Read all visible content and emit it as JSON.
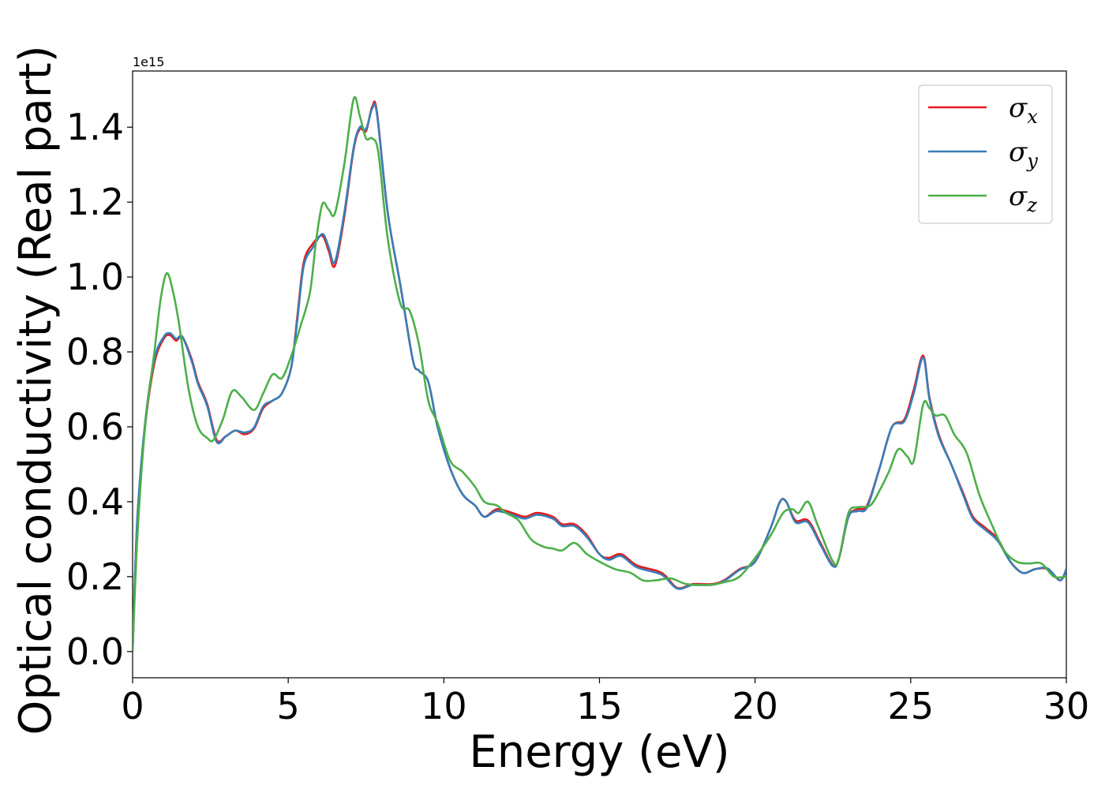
{
  "chart_data": {
    "type": "line",
    "title": "",
    "xlabel": "Energy (eV)",
    "ylabel": "Optical conductivity (Real part)",
    "y_offset_label": "1e15",
    "xlim": [
      0,
      30
    ],
    "ylim": [
      -0.07,
      1.55
    ],
    "x_ticks": [
      0,
      5,
      10,
      15,
      20,
      25,
      30
    ],
    "x_tick_labels": [
      "0",
      "5",
      "10",
      "15",
      "20",
      "25",
      "30"
    ],
    "y_ticks": [
      0.0,
      0.2,
      0.4,
      0.6,
      0.8,
      1.0,
      1.2,
      1.4
    ],
    "y_tick_labels": [
      "0.0",
      "0.2",
      "0.4",
      "0.6",
      "0.8",
      "1.0",
      "1.2",
      "1.4"
    ],
    "grid": false,
    "legend_position": "top-right",
    "series": [
      {
        "name": "σx",
        "legend_base": "σ",
        "legend_sub": "x",
        "color": "#e41a1c",
        "points": [
          [
            0,
            0.0
          ],
          [
            0.15,
            0.35
          ],
          [
            0.4,
            0.6
          ],
          [
            0.7,
            0.77
          ],
          [
            1.0,
            0.835
          ],
          [
            1.2,
            0.845
          ],
          [
            1.4,
            0.83
          ],
          [
            1.6,
            0.84
          ],
          [
            1.9,
            0.78
          ],
          [
            2.1,
            0.72
          ],
          [
            2.4,
            0.66
          ],
          [
            2.7,
            0.565
          ],
          [
            3.0,
            0.575
          ],
          [
            3.3,
            0.59
          ],
          [
            3.6,
            0.58
          ],
          [
            3.9,
            0.595
          ],
          [
            4.2,
            0.65
          ],
          [
            4.5,
            0.67
          ],
          [
            4.8,
            0.69
          ],
          [
            5.1,
            0.76
          ],
          [
            5.3,
            0.9
          ],
          [
            5.5,
            1.04
          ],
          [
            5.8,
            1.09
          ],
          [
            6.1,
            1.11
          ],
          [
            6.3,
            1.07
          ],
          [
            6.5,
            1.03
          ],
          [
            6.8,
            1.16
          ],
          [
            7.1,
            1.34
          ],
          [
            7.3,
            1.395
          ],
          [
            7.5,
            1.39
          ],
          [
            7.7,
            1.455
          ],
          [
            7.85,
            1.44
          ],
          [
            8.2,
            1.17
          ],
          [
            8.6,
            0.98
          ],
          [
            9.0,
            0.78
          ],
          [
            9.2,
            0.75
          ],
          [
            9.5,
            0.72
          ],
          [
            9.8,
            0.6
          ],
          [
            10.2,
            0.49
          ],
          [
            10.6,
            0.42
          ],
          [
            11.0,
            0.39
          ],
          [
            11.3,
            0.36
          ],
          [
            11.7,
            0.38
          ],
          [
            12.2,
            0.37
          ],
          [
            12.6,
            0.36
          ],
          [
            13.0,
            0.37
          ],
          [
            13.5,
            0.36
          ],
          [
            13.8,
            0.34
          ],
          [
            14.2,
            0.34
          ],
          [
            14.6,
            0.31
          ],
          [
            15.0,
            0.26
          ],
          [
            15.3,
            0.25
          ],
          [
            15.7,
            0.26
          ],
          [
            16.2,
            0.23
          ],
          [
            17.0,
            0.21
          ],
          [
            17.5,
            0.17
          ],
          [
            18.0,
            0.18
          ],
          [
            18.6,
            0.18
          ],
          [
            19.0,
            0.19
          ],
          [
            19.5,
            0.22
          ],
          [
            20.0,
            0.24
          ],
          [
            20.5,
            0.33
          ],
          [
            20.8,
            0.4
          ],
          [
            21.0,
            0.4
          ],
          [
            21.3,
            0.35
          ],
          [
            21.7,
            0.35
          ],
          [
            22.1,
            0.29
          ],
          [
            22.5,
            0.23
          ],
          [
            22.7,
            0.25
          ],
          [
            23.0,
            0.36
          ],
          [
            23.3,
            0.38
          ],
          [
            23.6,
            0.39
          ],
          [
            24.0,
            0.49
          ],
          [
            24.4,
            0.6
          ],
          [
            24.8,
            0.62
          ],
          [
            25.1,
            0.7
          ],
          [
            25.4,
            0.79
          ],
          [
            25.6,
            0.68
          ],
          [
            25.9,
            0.58
          ],
          [
            26.3,
            0.5
          ],
          [
            26.7,
            0.42
          ],
          [
            27.0,
            0.36
          ],
          [
            27.4,
            0.33
          ],
          [
            27.8,
            0.3
          ],
          [
            28.2,
            0.24
          ],
          [
            28.6,
            0.21
          ],
          [
            29.0,
            0.22
          ],
          [
            29.4,
            0.22
          ],
          [
            29.8,
            0.19
          ],
          [
            30.0,
            0.22
          ]
        ]
      },
      {
        "name": "σy",
        "legend_base": "σ",
        "legend_sub": "y",
        "color": "#377eb8",
        "points": [
          [
            0,
            0.0
          ],
          [
            0.15,
            0.35
          ],
          [
            0.4,
            0.61
          ],
          [
            0.7,
            0.78
          ],
          [
            1.0,
            0.84
          ],
          [
            1.2,
            0.85
          ],
          [
            1.4,
            0.835
          ],
          [
            1.6,
            0.84
          ],
          [
            1.9,
            0.775
          ],
          [
            2.1,
            0.715
          ],
          [
            2.4,
            0.655
          ],
          [
            2.7,
            0.56
          ],
          [
            3.0,
            0.575
          ],
          [
            3.3,
            0.59
          ],
          [
            3.6,
            0.585
          ],
          [
            3.9,
            0.598
          ],
          [
            4.2,
            0.655
          ],
          [
            4.5,
            0.67
          ],
          [
            4.8,
            0.69
          ],
          [
            5.1,
            0.76
          ],
          [
            5.3,
            0.89
          ],
          [
            5.5,
            1.03
          ],
          [
            5.8,
            1.08
          ],
          [
            6.1,
            1.115
          ],
          [
            6.3,
            1.08
          ],
          [
            6.5,
            1.04
          ],
          [
            6.8,
            1.17
          ],
          [
            7.1,
            1.345
          ],
          [
            7.3,
            1.4
          ],
          [
            7.5,
            1.395
          ],
          [
            7.7,
            1.45
          ],
          [
            7.85,
            1.435
          ],
          [
            8.2,
            1.17
          ],
          [
            8.6,
            0.98
          ],
          [
            9.0,
            0.78
          ],
          [
            9.2,
            0.75
          ],
          [
            9.5,
            0.72
          ],
          [
            9.8,
            0.6
          ],
          [
            10.2,
            0.49
          ],
          [
            10.6,
            0.42
          ],
          [
            11.0,
            0.39
          ],
          [
            11.3,
            0.36
          ],
          [
            11.7,
            0.375
          ],
          [
            12.2,
            0.365
          ],
          [
            12.6,
            0.355
          ],
          [
            13.0,
            0.365
          ],
          [
            13.5,
            0.355
          ],
          [
            13.8,
            0.335
          ],
          [
            14.2,
            0.335
          ],
          [
            14.6,
            0.305
          ],
          [
            15.0,
            0.26
          ],
          [
            15.3,
            0.245
          ],
          [
            15.7,
            0.255
          ],
          [
            16.2,
            0.225
          ],
          [
            17.0,
            0.205
          ],
          [
            17.5,
            0.168
          ],
          [
            18.0,
            0.178
          ],
          [
            18.6,
            0.178
          ],
          [
            19.0,
            0.188
          ],
          [
            19.5,
            0.218
          ],
          [
            20.0,
            0.24
          ],
          [
            20.5,
            0.33
          ],
          [
            20.8,
            0.4
          ],
          [
            21.0,
            0.4
          ],
          [
            21.3,
            0.345
          ],
          [
            21.7,
            0.345
          ],
          [
            22.1,
            0.285
          ],
          [
            22.5,
            0.228
          ],
          [
            22.7,
            0.25
          ],
          [
            23.0,
            0.36
          ],
          [
            23.3,
            0.375
          ],
          [
            23.6,
            0.385
          ],
          [
            24.0,
            0.49
          ],
          [
            24.4,
            0.6
          ],
          [
            24.8,
            0.615
          ],
          [
            25.1,
            0.69
          ],
          [
            25.4,
            0.785
          ],
          [
            25.6,
            0.675
          ],
          [
            25.9,
            0.575
          ],
          [
            26.3,
            0.5
          ],
          [
            26.7,
            0.415
          ],
          [
            27.0,
            0.355
          ],
          [
            27.4,
            0.325
          ],
          [
            27.8,
            0.295
          ],
          [
            28.2,
            0.24
          ],
          [
            28.6,
            0.21
          ],
          [
            29.0,
            0.22
          ],
          [
            29.4,
            0.222
          ],
          [
            29.8,
            0.19
          ],
          [
            30.0,
            0.22
          ]
        ]
      },
      {
        "name": "σz",
        "legend_base": "σ",
        "legend_sub": "z",
        "color": "#4daf4a",
        "points": [
          [
            0,
            0.0
          ],
          [
            0.15,
            0.3
          ],
          [
            0.4,
            0.6
          ],
          [
            0.7,
            0.8
          ],
          [
            0.9,
            0.94
          ],
          [
            1.1,
            1.01
          ],
          [
            1.3,
            0.96
          ],
          [
            1.5,
            0.87
          ],
          [
            1.8,
            0.7
          ],
          [
            2.1,
            0.6
          ],
          [
            2.4,
            0.57
          ],
          [
            2.6,
            0.565
          ],
          [
            2.9,
            0.62
          ],
          [
            3.2,
            0.695
          ],
          [
            3.5,
            0.68
          ],
          [
            3.9,
            0.645
          ],
          [
            4.2,
            0.69
          ],
          [
            4.5,
            0.74
          ],
          [
            4.8,
            0.73
          ],
          [
            5.1,
            0.79
          ],
          [
            5.4,
            0.87
          ],
          [
            5.7,
            0.96
          ],
          [
            5.9,
            1.1
          ],
          [
            6.1,
            1.195
          ],
          [
            6.3,
            1.18
          ],
          [
            6.5,
            1.17
          ],
          [
            6.8,
            1.3
          ],
          [
            7.1,
            1.475
          ],
          [
            7.3,
            1.43
          ],
          [
            7.5,
            1.37
          ],
          [
            7.7,
            1.37
          ],
          [
            7.9,
            1.33
          ],
          [
            8.2,
            1.1
          ],
          [
            8.6,
            0.93
          ],
          [
            8.9,
            0.91
          ],
          [
            9.2,
            0.82
          ],
          [
            9.5,
            0.67
          ],
          [
            9.8,
            0.61
          ],
          [
            10.2,
            0.51
          ],
          [
            10.6,
            0.48
          ],
          [
            11.0,
            0.44
          ],
          [
            11.3,
            0.4
          ],
          [
            11.7,
            0.39
          ],
          [
            12.0,
            0.37
          ],
          [
            12.4,
            0.35
          ],
          [
            12.8,
            0.3
          ],
          [
            13.2,
            0.28
          ],
          [
            13.5,
            0.275
          ],
          [
            13.8,
            0.27
          ],
          [
            14.2,
            0.29
          ],
          [
            14.6,
            0.26
          ],
          [
            15.0,
            0.24
          ],
          [
            15.5,
            0.22
          ],
          [
            16.0,
            0.21
          ],
          [
            16.4,
            0.19
          ],
          [
            16.8,
            0.19
          ],
          [
            17.3,
            0.195
          ],
          [
            17.8,
            0.18
          ],
          [
            18.5,
            0.178
          ],
          [
            19.0,
            0.185
          ],
          [
            19.5,
            0.2
          ],
          [
            20.0,
            0.25
          ],
          [
            20.5,
            0.31
          ],
          [
            20.9,
            0.37
          ],
          [
            21.2,
            0.38
          ],
          [
            21.4,
            0.37
          ],
          [
            21.7,
            0.4
          ],
          [
            22.0,
            0.34
          ],
          [
            22.5,
            0.24
          ],
          [
            22.7,
            0.25
          ],
          [
            23.0,
            0.37
          ],
          [
            23.3,
            0.385
          ],
          [
            23.7,
            0.39
          ],
          [
            24.0,
            0.43
          ],
          [
            24.3,
            0.48
          ],
          [
            24.6,
            0.54
          ],
          [
            24.9,
            0.52
          ],
          [
            25.1,
            0.51
          ],
          [
            25.4,
            0.66
          ],
          [
            25.6,
            0.65
          ],
          [
            25.8,
            0.63
          ],
          [
            26.1,
            0.63
          ],
          [
            26.4,
            0.58
          ],
          [
            26.8,
            0.53
          ],
          [
            27.2,
            0.42
          ],
          [
            27.6,
            0.34
          ],
          [
            28.0,
            0.27
          ],
          [
            28.4,
            0.24
          ],
          [
            28.8,
            0.235
          ],
          [
            29.2,
            0.235
          ],
          [
            29.6,
            0.2
          ],
          [
            30.0,
            0.2
          ]
        ]
      }
    ]
  }
}
